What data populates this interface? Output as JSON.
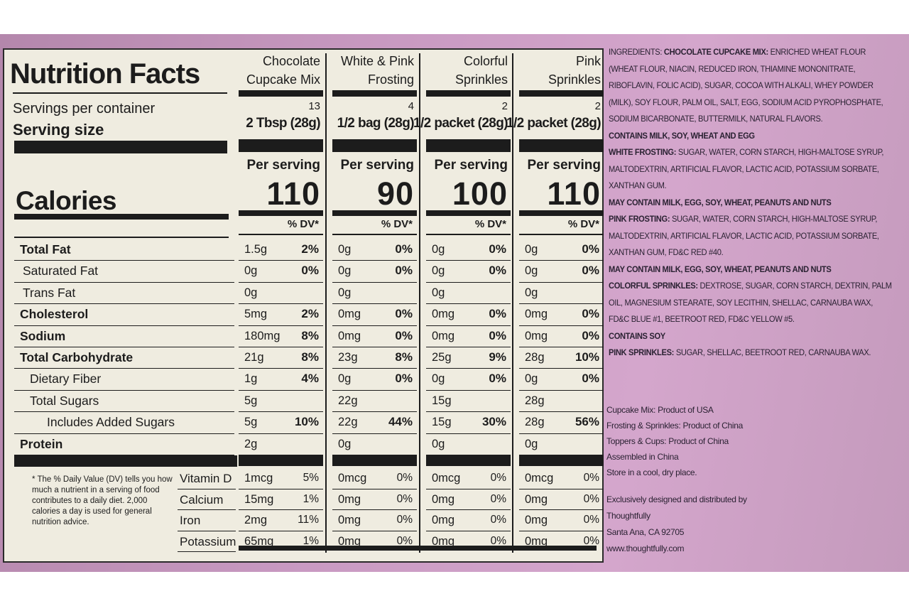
{
  "label": {
    "title": "Nutrition Facts",
    "servings_per_container_label": "Servings per container",
    "serving_size_label": "Serving size",
    "per_serving_label": "Per serving",
    "calories_label": "Calories",
    "dv_label": "% DV*",
    "columns": [
      {
        "name": [
          "Chocolate",
          "Cupcake Mix"
        ],
        "servings": 13,
        "serving_size": "2 Tbsp (28g)",
        "calories": 110
      },
      {
        "name": [
          "White & Pink",
          "Frosting"
        ],
        "servings": 4,
        "serving_size": "1/2 bag (28g)",
        "calories": 90
      },
      {
        "name": [
          "Colorful",
          "Sprinkles"
        ],
        "servings": 2,
        "serving_size": "1/2 packet (28g)",
        "calories": 100
      },
      {
        "name": [
          "Pink",
          "Sprinkles"
        ],
        "servings": 2,
        "serving_size": "1/2 packet (28g)",
        "calories": 110
      }
    ],
    "nutrients": [
      {
        "name": "Total Fat",
        "values": [
          {
            "amount": "1.5g",
            "dv": "2%"
          },
          {
            "amount": "0g",
            "dv": "0%"
          },
          {
            "amount": "0g",
            "dv": "0%"
          },
          {
            "amount": "0g",
            "dv": "0%"
          }
        ]
      },
      {
        "name": "Saturated Fat",
        "values": [
          {
            "amount": "0g",
            "dv": "0%"
          },
          {
            "amount": "0g",
            "dv": "0%"
          },
          {
            "amount": "0g",
            "dv": "0%"
          },
          {
            "amount": "0g",
            "dv": "0%"
          }
        ]
      },
      {
        "name": "Trans Fat",
        "values": [
          {
            "amount": "0g"
          },
          {
            "amount": "0g"
          },
          {
            "amount": "0g"
          },
          {
            "amount": "0g"
          }
        ]
      },
      {
        "name": "Cholesterol",
        "values": [
          {
            "amount": "5mg",
            "dv": "2%"
          },
          {
            "amount": "0mg",
            "dv": "0%"
          },
          {
            "amount": "0mg",
            "dv": "0%"
          },
          {
            "amount": "0mg",
            "dv": "0%"
          }
        ]
      },
      {
        "name": "Sodium",
        "values": [
          {
            "amount": "180mg",
            "dv": "8%"
          },
          {
            "amount": "0mg",
            "dv": "0%"
          },
          {
            "amount": "0mg",
            "dv": "0%"
          },
          {
            "amount": "0mg",
            "dv": "0%"
          }
        ]
      },
      {
        "name": "Total Carbohydrate",
        "values": [
          {
            "amount": "21g",
            "dv": "8%"
          },
          {
            "amount": "23g",
            "dv": "8%"
          },
          {
            "amount": "25g",
            "dv": "9%"
          },
          {
            "amount": "28g",
            "dv": "10%"
          }
        ]
      },
      {
        "name": "Dietary Fiber",
        "values": [
          {
            "amount": "1g",
            "dv": "4%"
          },
          {
            "amount": "0g",
            "dv": "0%"
          },
          {
            "amount": "0g",
            "dv": "0%"
          },
          {
            "amount": "0g",
            "dv": "0%"
          }
        ]
      },
      {
        "name": "Total Sugars",
        "values": [
          {
            "amount": "5g"
          },
          {
            "amount": "22g"
          },
          {
            "amount": "15g"
          },
          {
            "amount": "28g"
          }
        ]
      },
      {
        "name": "Includes Added Sugars",
        "values": [
          {
            "amount": "5g",
            "dv": "10%"
          },
          {
            "amount": "22g",
            "dv": "44%"
          },
          {
            "amount": "15g",
            "dv": "30%"
          },
          {
            "amount": "28g",
            "dv": "56%"
          }
        ]
      },
      {
        "name": "Protein",
        "values": [
          {
            "amount": "2g"
          },
          {
            "amount": "0g"
          },
          {
            "amount": "0g"
          },
          {
            "amount": "0g"
          }
        ]
      }
    ],
    "vitamins": [
      {
        "name": "Vitamin D",
        "values": [
          {
            "amount": "1mcg",
            "dv": "5%"
          },
          {
            "amount": "0mcg",
            "dv": "0%"
          },
          {
            "amount": "0mcg",
            "dv": "0%"
          },
          {
            "amount": "0mcg",
            "dv": "0%"
          }
        ]
      },
      {
        "name": "Calcium",
        "values": [
          {
            "amount": "15mg",
            "dv": "1%"
          },
          {
            "amount": "0mg",
            "dv": "0%"
          },
          {
            "amount": "0mg",
            "dv": "0%"
          },
          {
            "amount": "0mg",
            "dv": "0%"
          }
        ]
      },
      {
        "name": "Iron",
        "values": [
          {
            "amount": "2mg",
            "dv": "11%"
          },
          {
            "amount": "0mg",
            "dv": "0%"
          },
          {
            "amount": "0mg",
            "dv": "0%"
          },
          {
            "amount": "0mg",
            "dv": "0%"
          }
        ]
      },
      {
        "name": "Potassium",
        "values": [
          {
            "amount": "65mg",
            "dv": "1%"
          },
          {
            "amount": "0mg",
            "dv": "0%"
          },
          {
            "amount": "0mg",
            "dv": "0%"
          },
          {
            "amount": "0mg",
            "dv": "0%"
          }
        ]
      }
    ],
    "footnote": "* The % Daily Value (DV) tells you how much a nutrient in a serving of food contributes to a daily diet. 2,000 calories a day is used for general nutrition advice."
  },
  "ingredients": [
    {
      "prefix": "INGREDIENTS:",
      "label": "CHOCOLATE CUPCAKE MIX:",
      "text": "ENRICHED WHEAT FLOUR (WHEAT FLOUR, NIACIN, REDUCED IRON, THIAMINE MONONITRATE, RIBOFLAVIN, FOLIC ACID), SUGAR, COCOA WITH ALKALI, WHEY POWDER (MILK), SOY FLOUR, PALM OIL, SALT, EGG, SODIUM ACID PYROPHOSPHATE, SODIUM BICARBONATE, BUTTERMILK, NATURAL FLAVORS."
    },
    {
      "label": "CONTAINS MILK, SOY, WHEAT AND EGG"
    },
    {
      "label": "WHITE FROSTING:",
      "text": "SUGAR, WATER, CORN STARCH, HIGH-MALTOSE SYRUP, MALTODEXTRIN, ARTIFICIAL FLAVOR, LACTIC ACID, POTASSIUM SORBATE, XANTHAN GUM."
    },
    {
      "label": "MAY CONTAIN MILK, EGG, SOY, WHEAT, PEANUTS AND NUTS"
    },
    {
      "label": "PINK FROSTING:",
      "text": "SUGAR, WATER, CORN STARCH, HIGH-MALTOSE SYRUP, MALTODEXTRIN, ARTIFICIAL FLAVOR, LACTIC ACID, POTASSIUM SORBATE, XANTHAN GUM, FD&C RED #40."
    },
    {
      "label": "MAY CONTAIN MILK, EGG, SOY, WHEAT, PEANUTS AND NUTS"
    },
    {
      "label": "COLORFUL SPRINKLES:",
      "text": "DEXTROSE, SUGAR, CORN STARCH, DEXTRIN, PALM OIL, MAGNESIUM STEARATE, SOY LECITHIN, SHELLAC, CARNAUBA WAX, FD&C BLUE #1, BEETROOT RED, FD&C YELLOW #5."
    },
    {
      "label": "CONTAINS SOY"
    },
    {
      "label": "PINK SPRINKLES:",
      "text": "SUGAR, SHELLAC, BEETROOT RED, CARNAUBA WAX."
    }
  ],
  "origin": [
    "Cupcake Mix: Product of USA",
    "Frosting & Sprinkles: Product of China",
    "Toppers & Cups: Product of China",
    "Assembled in China",
    "Store in a cool, dry place."
  ],
  "distributor": [
    "Exclusively designed and distributed by",
    "Thoughtfully",
    "Santa Ana, CA 92705",
    "www.thoughtfully.com"
  ]
}
